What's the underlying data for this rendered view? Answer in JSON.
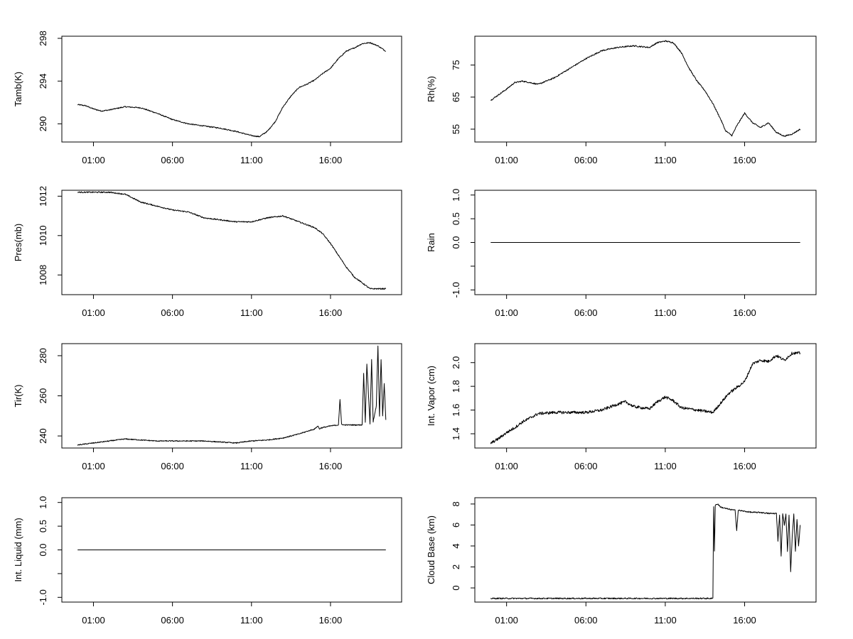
{
  "chart_data": [
    {
      "type": "line",
      "ylabel": "Tamb(K)",
      "ylim": [
        288.3,
        298.2
      ],
      "yticks": [
        "290",
        "294",
        "298"
      ],
      "xticks": [
        "01:00",
        "06:00",
        "11:00",
        "16:00"
      ],
      "xtick_hours": [
        1,
        6,
        11,
        16
      ],
      "xlim_hours": [
        -1.0,
        20.5
      ],
      "noise": 0.05,
      "series": [
        {
          "x": [
            0,
            0.5,
            1,
            1.5,
            2,
            3,
            4,
            5,
            6,
            7,
            8,
            9,
            10,
            11,
            11.5,
            12,
            12.5,
            13,
            13.5,
            14,
            14.5,
            15,
            15.5,
            16,
            16.5,
            17,
            17.5,
            18,
            18.5,
            19,
            19.5
          ],
          "values": [
            291.8,
            291.7,
            291.4,
            291.2,
            291.3,
            291.6,
            291.5,
            291.0,
            290.4,
            290.0,
            289.8,
            289.6,
            289.3,
            288.9,
            288.8,
            289.3,
            290.2,
            291.6,
            292.6,
            293.4,
            293.7,
            294.1,
            294.7,
            295.2,
            296.1,
            296.8,
            297.1,
            297.5,
            297.6,
            297.3,
            296.8
          ]
        }
      ]
    },
    {
      "type": "line",
      "ylabel": "Rh(%)",
      "ylim": [
        51,
        84
      ],
      "yticks": [
        "55",
        "65",
        "75"
      ],
      "xticks": [
        "01:00",
        "06:00",
        "11:00",
        "16:00"
      ],
      "xtick_hours": [
        1,
        6,
        11,
        16
      ],
      "xlim_hours": [
        -1.0,
        20.5
      ],
      "noise": 0.2,
      "series": [
        {
          "x": [
            0,
            1,
            1.5,
            2,
            3,
            4,
            5,
            6,
            7,
            8,
            9,
            10,
            10.5,
            11,
            11.5,
            12,
            12.5,
            13,
            13.5,
            14,
            14.5,
            14.8,
            15.2,
            15.5,
            16,
            16.5,
            17,
            17.5,
            18,
            18.5,
            19,
            19.5
          ],
          "values": [
            64,
            67.5,
            69.5,
            70,
            69,
            71,
            74,
            77,
            79.5,
            80.5,
            81,
            80.5,
            82,
            82.5,
            82,
            79,
            74,
            70,
            67,
            63,
            58,
            54.5,
            53,
            56,
            60,
            57,
            55.5,
            57,
            54,
            52.8,
            53.5,
            55
          ]
        }
      ]
    },
    {
      "type": "line",
      "ylabel": "Pres(mb)",
      "ylim": [
        1007.0,
        1012.3
      ],
      "yticks": [
        "1008",
        "1010",
        "1012"
      ],
      "xticks": [
        "01:00",
        "06:00",
        "11:00",
        "16:00"
      ],
      "xtick_hours": [
        1,
        6,
        11,
        16
      ],
      "xlim_hours": [
        -1.0,
        20.5
      ],
      "noise": 0.03,
      "series": [
        {
          "x": [
            0,
            1,
            2,
            3,
            4,
            5,
            6,
            7,
            8,
            9,
            10,
            11,
            12,
            13,
            14,
            15,
            15.5,
            16,
            16.5,
            17,
            17.5,
            18,
            18.5,
            19,
            19.5
          ],
          "values": [
            1012.2,
            1012.2,
            1012.2,
            1012.1,
            1011.7,
            1011.5,
            1011.3,
            1011.2,
            1010.9,
            1010.8,
            1010.7,
            1010.7,
            1010.9,
            1011.0,
            1010.7,
            1010.4,
            1010.1,
            1009.6,
            1009.0,
            1008.4,
            1007.9,
            1007.6,
            1007.3,
            1007.3,
            1007.3
          ]
        }
      ]
    },
    {
      "type": "line",
      "ylabel": "Rain",
      "ylim": [
        -1.1,
        1.1
      ],
      "yticks": [
        "-1.0",
        "0.0",
        "0.5",
        "1.0"
      ],
      "ytick_values": [
        -1.0,
        0.0,
        0.5,
        1.0
      ],
      "minor_yticks": [
        -0.5
      ],
      "xticks": [
        "01:00",
        "06:00",
        "11:00",
        "16:00"
      ],
      "xtick_hours": [
        1,
        6,
        11,
        16
      ],
      "xlim_hours": [
        -1.0,
        20.5
      ],
      "noise": 0,
      "series": [
        {
          "x": [
            0,
            19.5
          ],
          "values": [
            0,
            0
          ]
        }
      ]
    },
    {
      "type": "line",
      "ylabel": "Tir(K)",
      "ylim": [
        234,
        286
      ],
      "yticks": [
        "240",
        "260",
        "280"
      ],
      "xticks": [
        "01:00",
        "06:00",
        "11:00",
        "16:00"
      ],
      "xtick_hours": [
        1,
        6,
        11,
        16
      ],
      "xlim_hours": [
        -1.0,
        20.5
      ],
      "noise": 0.25,
      "series": [
        {
          "x": [
            0,
            1,
            2,
            3,
            4,
            5,
            6,
            7,
            8,
            9,
            10,
            10.5,
            11,
            12,
            13,
            14,
            15,
            15.2,
            15.3,
            15.4,
            16,
            16.5,
            16.6,
            16.7,
            16.8,
            17,
            18,
            18.1,
            18.2,
            18.3,
            18.5,
            18.6,
            18.7,
            18.9,
            19.0,
            19.1,
            19.2,
            19.3,
            19.4,
            19.5
          ],
          "values": [
            235.5,
            236.5,
            237.5,
            238.5,
            238,
            237.5,
            237.5,
            237.5,
            237.5,
            237,
            236.5,
            237,
            237.5,
            238,
            239,
            241,
            243.5,
            245,
            243.5,
            244,
            245,
            245.5,
            258,
            246,
            245.5,
            245.5,
            245.5,
            271,
            247,
            276,
            246,
            278,
            247,
            255,
            285,
            250,
            278,
            250,
            266,
            248
          ]
        }
      ]
    },
    {
      "type": "line",
      "ylabel": "Int. Vapor (cm)",
      "ylim": [
        1.28,
        2.16
      ],
      "yticks": [
        "1.4",
        "1.6",
        "1.8",
        "2.0"
      ],
      "xticks": [
        "01:00",
        "06:00",
        "11:00",
        "16:00"
      ],
      "xtick_hours": [
        1,
        6,
        11,
        16
      ],
      "xlim_hours": [
        -1.0,
        20.5
      ],
      "noise": 0.012,
      "series": [
        {
          "x": [
            0,
            0.5,
            1,
            1.5,
            2,
            3,
            4,
            5,
            6,
            7,
            8,
            8.5,
            9,
            10,
            10.5,
            11,
            11.5,
            12,
            13,
            14,
            14.5,
            15,
            15.5,
            16,
            16.5,
            17,
            17.5,
            18,
            18.5,
            19,
            19.5
          ],
          "values": [
            1.32,
            1.36,
            1.41,
            1.45,
            1.5,
            1.57,
            1.58,
            1.58,
            1.58,
            1.6,
            1.65,
            1.67,
            1.63,
            1.61,
            1.67,
            1.71,
            1.68,
            1.62,
            1.6,
            1.58,
            1.66,
            1.74,
            1.79,
            1.84,
            1.99,
            2.02,
            2.01,
            2.06,
            2.02,
            2.08,
            2.08
          ]
        }
      ]
    },
    {
      "type": "line",
      "ylabel": "Int. Liquid (mm)",
      "ylim": [
        -1.1,
        1.1
      ],
      "yticks": [
        "-1.0",
        "0.0",
        "0.5",
        "1.0"
      ],
      "ytick_values": [
        -1.0,
        0.0,
        0.5,
        1.0
      ],
      "minor_yticks": [
        -0.5
      ],
      "xticks": [
        "01:00",
        "06:00",
        "11:00",
        "16:00"
      ],
      "xtick_hours": [
        1,
        6,
        11,
        16
      ],
      "xlim_hours": [
        -1.0,
        20.5
      ],
      "noise": 0,
      "series": [
        {
          "x": [
            0,
            19.5
          ],
          "values": [
            0,
            0
          ]
        }
      ]
    },
    {
      "type": "line",
      "ylabel": "Cloud Base (km)",
      "ylim": [
        -1.35,
        8.6
      ],
      "yticks": [
        "0",
        "2",
        "4",
        "6",
        "8"
      ],
      "xticks": [
        "01:00",
        "06:00",
        "11:00",
        "16:00"
      ],
      "xtick_hours": [
        1,
        6,
        11,
        16
      ],
      "xlim_hours": [
        -1.0,
        20.5
      ],
      "noise": 0.06,
      "series": [
        {
          "x": [
            0,
            14.0,
            14.05,
            14.1,
            14.15,
            14.3,
            14.5,
            15,
            15.4,
            15.5,
            15.6,
            16,
            16.5,
            17,
            17.5,
            18,
            18.1,
            18.2,
            18.3,
            18.4,
            18.5,
            18.6,
            18.7,
            18.8,
            18.9,
            19.0,
            19.1,
            19.2,
            19.3,
            19.4,
            19.5
          ],
          "values": [
            -1,
            -1,
            7.8,
            3.5,
            7.9,
            8.0,
            7.7,
            7.5,
            7.4,
            5.5,
            7.4,
            7.3,
            7.2,
            7.2,
            7.1,
            7.1,
            4.5,
            7.0,
            3.0,
            7.1,
            6.0,
            7.0,
            3.5,
            7.0,
            1.5,
            5.0,
            7.0,
            3.5,
            6.5,
            4.0,
            6.0
          ]
        }
      ]
    }
  ]
}
